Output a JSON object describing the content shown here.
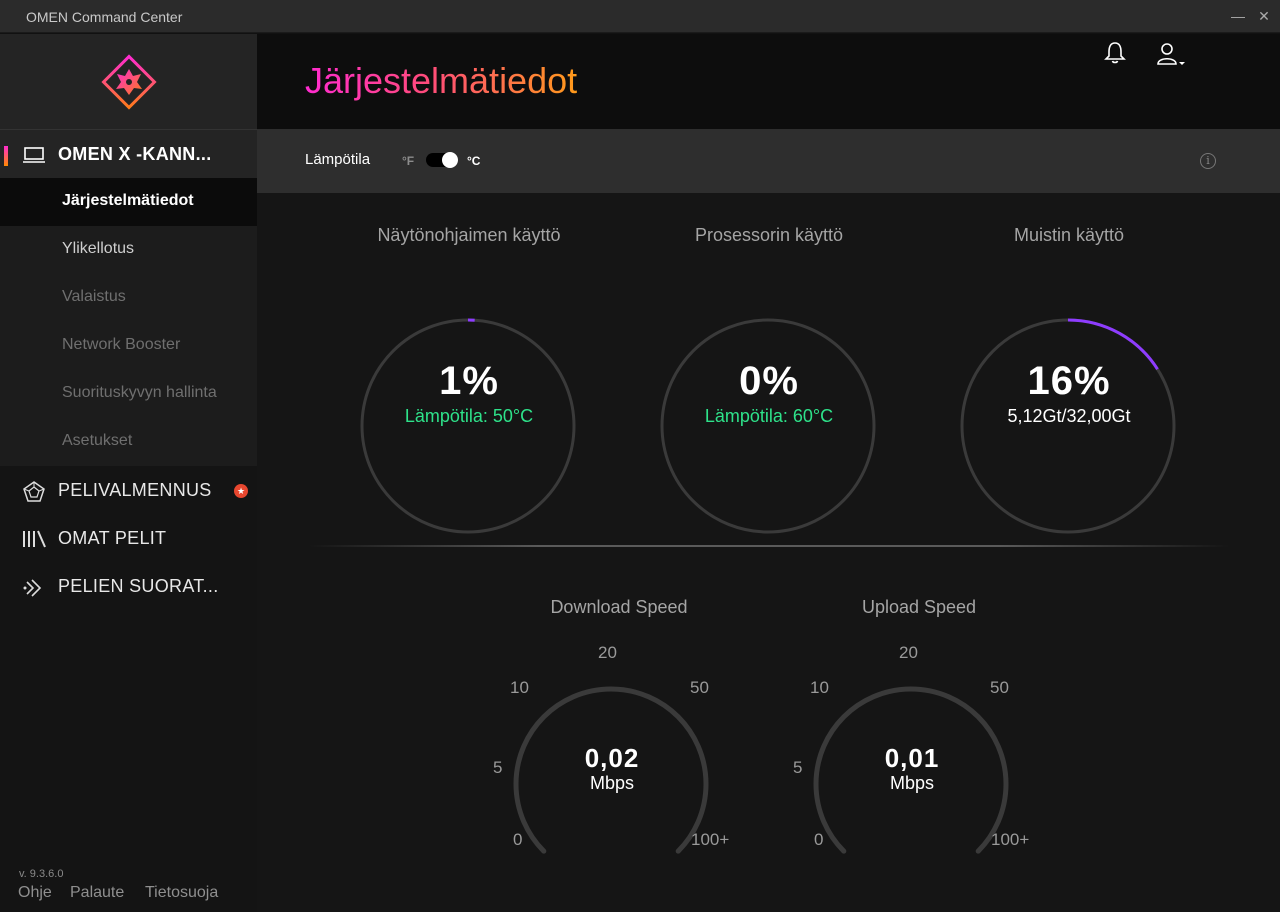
{
  "window": {
    "title": "OMEN Command Center",
    "minimize": "—",
    "close": "✕"
  },
  "sidebar": {
    "section": {
      "label": "OMEN X -KANN...",
      "icon": "laptop-icon"
    },
    "subitems": [
      {
        "label": "Järjestelmätiedot",
        "state": "active"
      },
      {
        "label": "Ylikellotus",
        "state": "normal"
      },
      {
        "label": "Valaistus",
        "state": "disabled"
      },
      {
        "label": "Network Booster",
        "state": "disabled"
      },
      {
        "label": "Suorituskyvyn hallinta",
        "state": "disabled"
      },
      {
        "label": "Asetukset",
        "state": "disabled"
      }
    ],
    "main_items": [
      {
        "label": "PELIVALMENNUS",
        "icon": "coaching-icon",
        "badge": "★"
      },
      {
        "label": "OMAT PELIT",
        "icon": "library-icon"
      },
      {
        "label": "PELIEN SUORAT...",
        "icon": "stream-icon"
      }
    ],
    "version": "v. 9.3.6.0",
    "footer": {
      "help": "Ohje",
      "feedback": "Palaute",
      "privacy": "Tietosuoja"
    }
  },
  "header": {
    "title": "Järjestelmätiedot"
  },
  "temperature": {
    "label": "Lämpötila",
    "unit_f": "°F",
    "unit_c": "°C",
    "selected": "C",
    "info": "i"
  },
  "gauges": [
    {
      "title": "Näytönohjaimen käyttö",
      "value": "1%",
      "percent": 1,
      "detail": "Lämpötila: 50°C"
    },
    {
      "title": "Prosessorin käyttö",
      "value": "0%",
      "percent": 0,
      "detail": "Lämpötila: 60°C"
    },
    {
      "title": "Muistin käyttö",
      "value": "16%",
      "percent": 16,
      "detail": "5,12Gt/32,00Gt"
    }
  ],
  "colors": {
    "accent_start": "#ff2bd0",
    "accent_end": "#ff9a1a",
    "gauge_progress": "#8e3cff",
    "temp_green": "#2ee28a"
  },
  "speed": {
    "ticks": [
      "0",
      "5",
      "10",
      "20",
      "50",
      "100+"
    ],
    "download": {
      "title": "Download Speed",
      "value": "0,02",
      "unit": "Mbps"
    },
    "upload": {
      "title": "Upload Speed",
      "value": "0,01",
      "unit": "Mbps"
    }
  }
}
